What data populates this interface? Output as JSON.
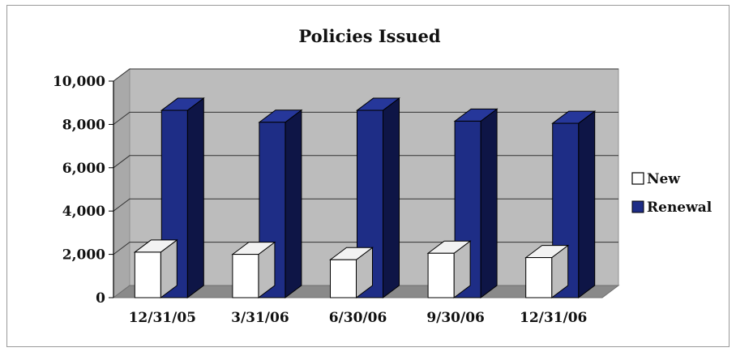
{
  "chart_data": {
    "type": "bar",
    "title": "Policies Issued",
    "categories": [
      "12/31/05",
      "3/31/06",
      "6/30/06",
      "9/30/06",
      "12/31/06"
    ],
    "series": [
      {
        "name": "New",
        "values": [
          2100,
          2000,
          1750,
          2050,
          1850
        ]
      },
      {
        "name": "Renewal",
        "values": [
          8650,
          8100,
          8650,
          8150,
          8050
        ]
      }
    ],
    "ylim": [
      0,
      10000
    ],
    "yticks": [
      "0",
      "2,000",
      "4,000",
      "6,000",
      "8,000",
      "10,000"
    ],
    "grid": true,
    "legend_position": "right",
    "style": "3d-clustered-column",
    "colors": {
      "new_front": "#ffffff",
      "new_top": "#f2f2f2",
      "new_side": "#bdbdbd",
      "renewal_front": "#1e2d86",
      "renewal_top": "#26379a",
      "renewal_side": "#0e1546",
      "wall": "#bcbcbc",
      "floor": "#8a8a8a"
    }
  }
}
